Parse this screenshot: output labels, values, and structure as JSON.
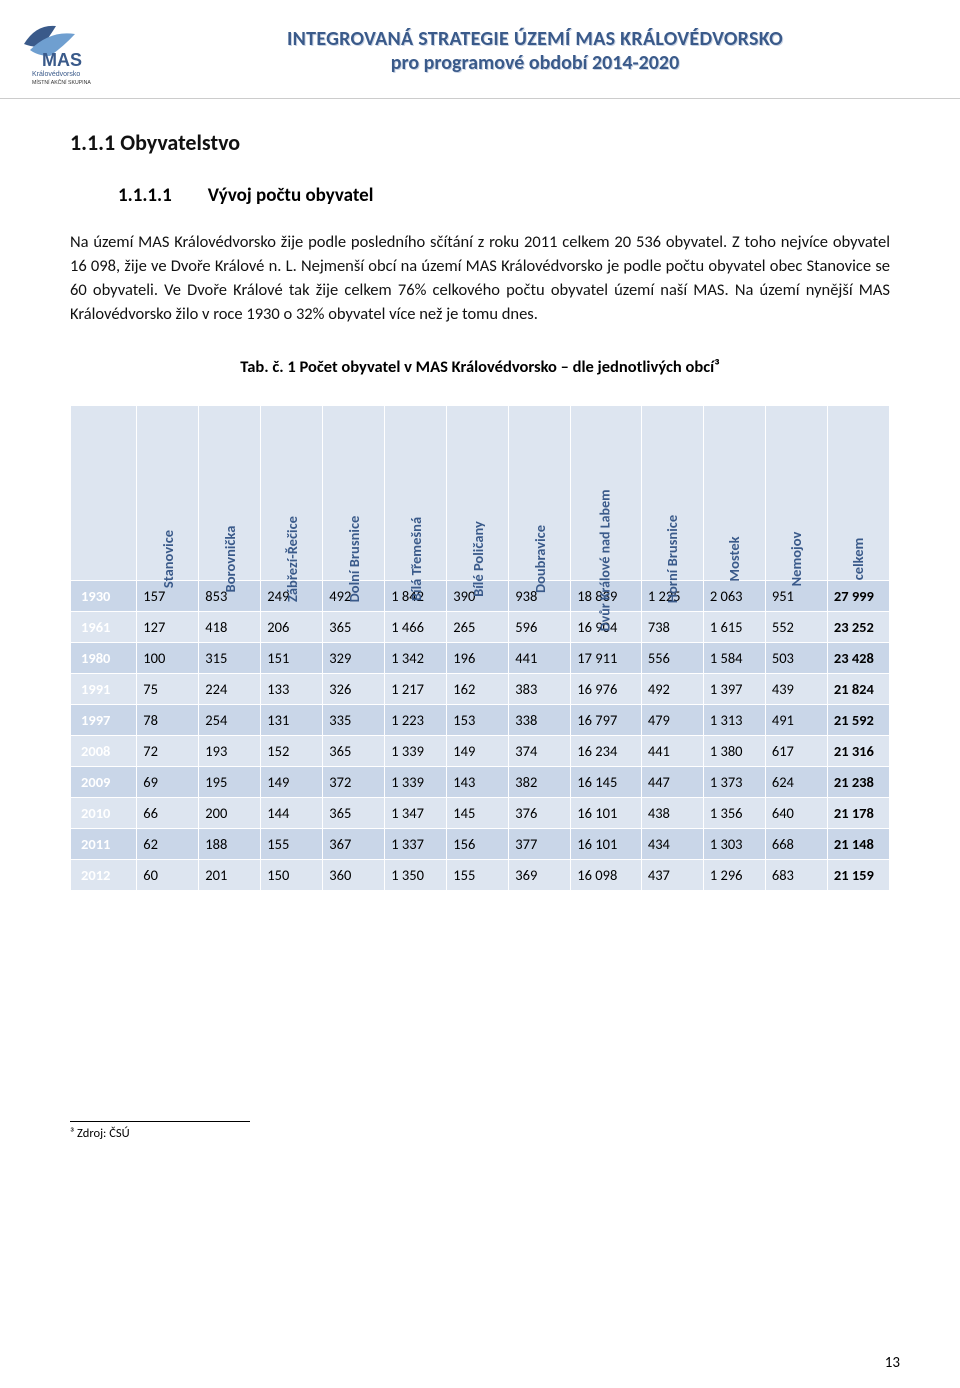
{
  "header": {
    "title_line1": "INTEGROVANÁ STRATEGIE ÚZEMÍ MAS KRÁLOVÉDVORSKO",
    "title_line2": "pro programové období 2014-2020",
    "logo_text_top": "MAS",
    "logo_text_mid": "Královédvorsko",
    "logo_text_bottom": "MÍSTNÍ AKČNÍ SKUPINA"
  },
  "section": {
    "number": "1.1.1",
    "title": "Obyvatelstvo",
    "sub_number": "1.1.1.1",
    "sub_title": "Vývoj počtu obyvatel",
    "paragraph": "Na území MAS Královédvorsko žije podle posledního sčítání z roku 2011 celkem 20 536 obyvatel. Z toho nejvíce obyvatel 16 098, žije ve Dvoře Králové n. L. Nejmenší obcí na území MAS Královédvorsko je podle počtu obyvatel obec Stanovice se 60 obyvateli. Ve Dvoře Králové tak žije celkem 76% celkového počtu obyvatel území naší MAS. Na území nynější MAS Královédvorsko žilo v roce 1930 o 32% obyvatel více než je tomu dnes.",
    "table_caption": "Tab. č. 1 Počet obyvatel v MAS Královédvorsko – dle jednotlivých obcí³"
  },
  "table": {
    "columns": [
      "Stanovice",
      "Borovnička",
      "Zábřezí-Řečice",
      "Dolní Brusnice",
      "Bílá Třemešná",
      "Bílé Poličany",
      "Doubravice",
      "Dvůr Králové nad Labem",
      "Horní Brusnice",
      "Mostek",
      "Nemojov",
      "celkem"
    ],
    "year_col": "",
    "years": [
      "1930",
      "1961",
      "1980",
      "1991",
      "1997",
      "2008",
      "2009",
      "2010",
      "2011",
      "2012"
    ],
    "rows": [
      [
        "157",
        "853",
        "249",
        "492",
        "1 842",
        "390",
        "938",
        "18 839",
        "1 225",
        "2 063",
        "951",
        "27 999"
      ],
      [
        "127",
        "418",
        "206",
        "365",
        "1 466",
        "265",
        "596",
        "16 904",
        "738",
        "1 615",
        "552",
        "23 252"
      ],
      [
        "100",
        "315",
        "151",
        "329",
        "1 342",
        "196",
        "441",
        "17 911",
        "556",
        "1 584",
        "503",
        "23 428"
      ],
      [
        "75",
        "224",
        "133",
        "326",
        "1 217",
        "162",
        "383",
        "16 976",
        "492",
        "1 397",
        "439",
        "21 824"
      ],
      [
        "78",
        "254",
        "131",
        "335",
        "1 223",
        "153",
        "338",
        "16 797",
        "479",
        "1 313",
        "491",
        "21 592"
      ],
      [
        "72",
        "193",
        "152",
        "365",
        "1 339",
        "149",
        "374",
        "16 234",
        "441",
        "1 380",
        "617",
        "21 316"
      ],
      [
        "69",
        "195",
        "149",
        "372",
        "1 339",
        "143",
        "382",
        "16 145",
        "447",
        "1 373",
        "624",
        "21 238"
      ],
      [
        "66",
        "200",
        "144",
        "365",
        "1 347",
        "145",
        "376",
        "16 101",
        "438",
        "1 356",
        "640",
        "21 178"
      ],
      [
        "62",
        "188",
        "155",
        "367",
        "1 337",
        "156",
        "377",
        "16 101",
        "434",
        "1 303",
        "668",
        "21 148"
      ],
      [
        "60",
        "201",
        "150",
        "360",
        "1 350",
        "155",
        "369",
        "16 098",
        "437",
        "1 296",
        "683",
        "21 159"
      ]
    ],
    "colors": {
      "header_bg": "#dde5f0",
      "header_fg": "#3a5a8a",
      "year_bg": "#3a5a8a",
      "year_fg": "#ffffff",
      "row_even": "#c9d6e8",
      "row_odd": "#dde5f0",
      "border": "#ffffff"
    }
  },
  "footnote": "³ Zdroj: ČSÚ",
  "page_number": "13"
}
